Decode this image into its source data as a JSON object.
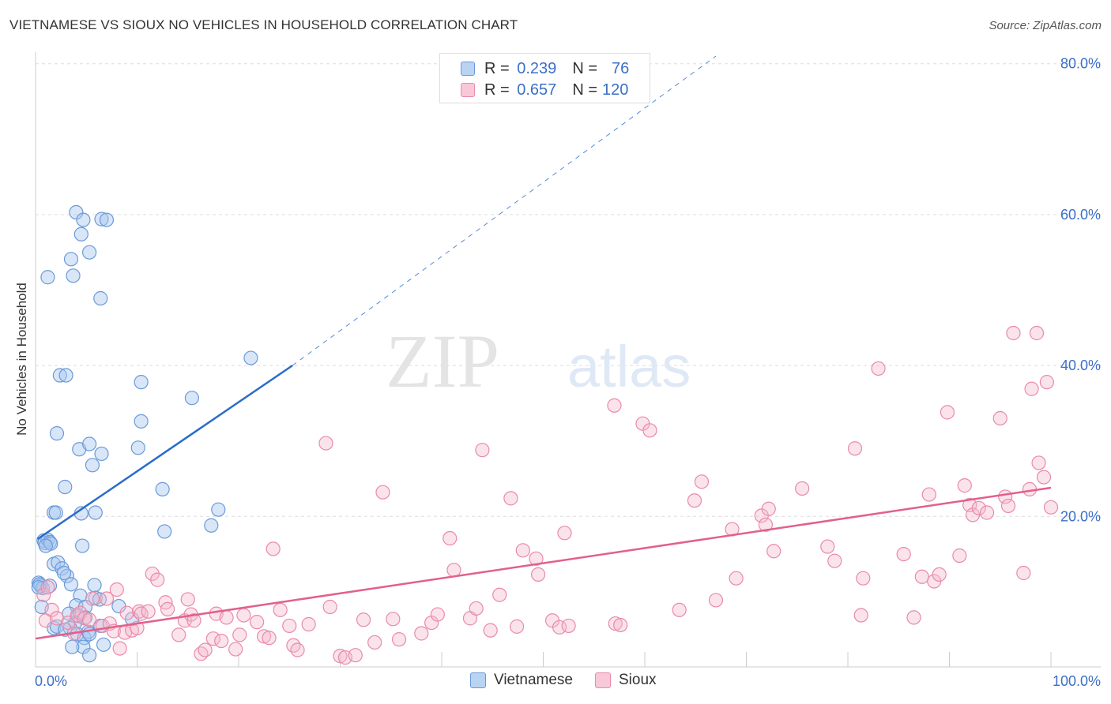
{
  "title": "VIETNAMESE VS SIOUX NO VEHICLES IN HOUSEHOLD CORRELATION CHART",
  "source": "Source: ZipAtlas.com",
  "watermark": {
    "zip": "ZIP",
    "atlas": "atlas"
  },
  "legend": {
    "rows": [
      {
        "r_label": "R =",
        "r_value": "0.239",
        "n_label": "N =",
        "n_value": "76"
      },
      {
        "r_label": "R =",
        "r_value": "0.657",
        "n_label": "N =",
        "n_value": "120"
      }
    ]
  },
  "colors": {
    "vietnamese_fill": "#a8c8f0",
    "vietnamese_stroke": "#6a9ad8",
    "vietnamese_line": "#2a6ccc",
    "sioux_fill": "#f5b8cc",
    "sioux_stroke": "#e98aa8",
    "sioux_line": "#e2608c",
    "axis_text": "#3b6fc9"
  },
  "chart_data": {
    "type": "scatter",
    "title": "VIETNAMESE VS SIOUX NO VEHICLES IN HOUSEHOLD CORRELATION CHART",
    "xlabel": "",
    "ylabel": "No Vehicles in Household",
    "xlim": [
      0,
      100
    ],
    "ylim": [
      0,
      80
    ],
    "x_tick_labels": [
      "0.0%",
      "100.0%"
    ],
    "y_ticks": [
      20,
      40,
      60,
      80
    ],
    "y_tick_labels": [
      "20.0%",
      "40.0%",
      "60.0%",
      "80.0%"
    ],
    "grid": true,
    "legend_position": "bottom-center",
    "series": [
      {
        "name": "Vietnamese",
        "R": 0.239,
        "N": 76,
        "trend": {
          "x0": 0.2,
          "y0": 17.0,
          "x1": 25.3,
          "y1": 40.0,
          "dash_x1": 67.0,
          "dash_y1": 81.0
        },
        "points": [
          [
            0.3,
            11.2
          ],
          [
            0.5,
            10.8
          ],
          [
            0.4,
            11.0
          ],
          [
            0.7,
            10.5
          ],
          [
            0.3,
            10.6
          ],
          [
            0.6,
            8.0
          ],
          [
            1.4,
            10.8
          ],
          [
            0.8,
            16.8
          ],
          [
            0.9,
            16.5
          ],
          [
            1.2,
            16.9
          ],
          [
            1.4,
            16.6
          ],
          [
            1.5,
            16.4
          ],
          [
            1.0,
            16.1
          ],
          [
            1.8,
            20.5
          ],
          [
            2.0,
            20.5
          ],
          [
            1.8,
            13.7
          ],
          [
            2.2,
            13.9
          ],
          [
            2.6,
            13.1
          ],
          [
            3.1,
            12.1
          ],
          [
            2.8,
            12.5
          ],
          [
            3.5,
            11.0
          ],
          [
            4.4,
            9.5
          ],
          [
            4.0,
            8.2
          ],
          [
            4.9,
            8.0
          ],
          [
            4.2,
            6.8
          ],
          [
            4.9,
            6.6
          ],
          [
            3.9,
            5.9
          ],
          [
            3.4,
            5.2
          ],
          [
            1.8,
            5.2
          ],
          [
            2.1,
            5.4
          ],
          [
            2.9,
            5.0
          ],
          [
            4.1,
            4.4
          ],
          [
            4.8,
            3.9
          ],
          [
            5.2,
            4.7
          ],
          [
            5.3,
            4.4
          ],
          [
            6.4,
            5.5
          ],
          [
            4.7,
            2.7
          ],
          [
            3.6,
            2.7
          ],
          [
            6.7,
            3.0
          ],
          [
            5.3,
            1.6
          ],
          [
            3.3,
            7.1
          ],
          [
            5.8,
            10.9
          ],
          [
            5.9,
            9.2
          ],
          [
            6.3,
            9.0
          ],
          [
            4.6,
            16.1
          ],
          [
            2.1,
            31.0
          ],
          [
            2.4,
            38.7
          ],
          [
            3.0,
            38.7
          ],
          [
            2.9,
            23.9
          ],
          [
            4.3,
            28.9
          ],
          [
            5.3,
            29.6
          ],
          [
            5.6,
            26.8
          ],
          [
            6.5,
            28.3
          ],
          [
            5.9,
            20.5
          ],
          [
            4.5,
            20.4
          ],
          [
            8.2,
            8.1
          ],
          [
            9.5,
            6.4
          ],
          [
            10.1,
            29.1
          ],
          [
            10.4,
            32.6
          ],
          [
            10.4,
            37.8
          ],
          [
            12.5,
            23.6
          ],
          [
            12.7,
            18.0
          ],
          [
            15.4,
            35.7
          ],
          [
            17.3,
            18.8
          ],
          [
            18.0,
            20.9
          ],
          [
            21.2,
            41.0
          ],
          [
            1.2,
            51.7
          ],
          [
            3.5,
            54.1
          ],
          [
            3.7,
            51.9
          ],
          [
            4.0,
            60.3
          ],
          [
            4.5,
            57.4
          ],
          [
            5.3,
            55.0
          ],
          [
            6.4,
            48.9
          ],
          [
            6.5,
            59.4
          ],
          [
            7.0,
            59.3
          ],
          [
            4.7,
            59.3
          ]
        ]
      },
      {
        "name": "Sioux",
        "R": 0.657,
        "N": 120,
        "trend": {
          "x0": 0.0,
          "y0": 3.8,
          "x1": 100.0,
          "y1": 23.8
        },
        "points": [
          [
            0.8,
            9.6
          ],
          [
            1.0,
            6.2
          ],
          [
            1.2,
            10.6
          ],
          [
            1.6,
            7.6
          ],
          [
            2.1,
            6.5
          ],
          [
            3.2,
            5.9
          ],
          [
            3.8,
            4.5
          ],
          [
            4.1,
            6.9
          ],
          [
            4.4,
            7.2
          ],
          [
            4.8,
            6.5
          ],
          [
            5.3,
            6.3
          ],
          [
            5.6,
            9.1
          ],
          [
            6.6,
            5.5
          ],
          [
            7.0,
            9.1
          ],
          [
            7.3,
            5.8
          ],
          [
            7.7,
            4.8
          ],
          [
            8.0,
            10.3
          ],
          [
            8.3,
            2.5
          ],
          [
            8.8,
            4.6
          ],
          [
            9.0,
            7.2
          ],
          [
            9.5,
            4.9
          ],
          [
            10.0,
            5.2
          ],
          [
            10.2,
            7.4
          ],
          [
            10.4,
            7.1
          ],
          [
            11.1,
            7.4
          ],
          [
            11.5,
            12.4
          ],
          [
            12.0,
            11.6
          ],
          [
            12.8,
            8.6
          ],
          [
            13.0,
            7.7
          ],
          [
            14.1,
            4.3
          ],
          [
            14.7,
            6.2
          ],
          [
            15.0,
            9.0
          ],
          [
            15.3,
            7.0
          ],
          [
            15.6,
            6.2
          ],
          [
            16.3,
            1.8
          ],
          [
            16.7,
            2.3
          ],
          [
            17.5,
            3.8
          ],
          [
            17.8,
            7.1
          ],
          [
            18.3,
            3.5
          ],
          [
            18.8,
            6.6
          ],
          [
            19.7,
            2.4
          ],
          [
            20.1,
            4.3
          ],
          [
            20.5,
            6.9
          ],
          [
            21.8,
            6.0
          ],
          [
            22.5,
            4.1
          ],
          [
            23.0,
            3.9
          ],
          [
            23.4,
            15.7
          ],
          [
            24.1,
            7.6
          ],
          [
            25.0,
            5.5
          ],
          [
            25.4,
            2.9
          ],
          [
            25.8,
            2.3
          ],
          [
            26.9,
            5.7
          ],
          [
            28.6,
            29.7
          ],
          [
            29.0,
            8.0
          ],
          [
            30.0,
            1.5
          ],
          [
            30.5,
            1.3
          ],
          [
            31.5,
            1.6
          ],
          [
            32.3,
            6.3
          ],
          [
            33.4,
            3.3
          ],
          [
            34.2,
            23.2
          ],
          [
            35.2,
            6.4
          ],
          [
            35.8,
            3.7
          ],
          [
            38.0,
            4.5
          ],
          [
            39.0,
            5.9
          ],
          [
            39.6,
            7.0
          ],
          [
            40.8,
            17.1
          ],
          [
            41.2,
            12.9
          ],
          [
            42.8,
            6.5
          ],
          [
            43.4,
            7.8
          ],
          [
            44.0,
            28.8
          ],
          [
            44.8,
            4.9
          ],
          [
            45.7,
            9.6
          ],
          [
            46.8,
            22.4
          ],
          [
            47.4,
            5.4
          ],
          [
            48.0,
            15.5
          ],
          [
            49.3,
            14.4
          ],
          [
            49.5,
            12.3
          ],
          [
            50.9,
            6.2
          ],
          [
            51.6,
            5.3
          ],
          [
            52.1,
            17.8
          ],
          [
            52.5,
            5.5
          ],
          [
            57.0,
            34.7
          ],
          [
            57.1,
            5.8
          ],
          [
            57.6,
            5.6
          ],
          [
            59.8,
            32.3
          ],
          [
            60.5,
            31.4
          ],
          [
            63.4,
            7.6
          ],
          [
            64.9,
            22.1
          ],
          [
            65.6,
            24.6
          ],
          [
            67.0,
            8.9
          ],
          [
            68.6,
            18.3
          ],
          [
            69.0,
            11.8
          ],
          [
            71.5,
            20.1
          ],
          [
            71.9,
            18.9
          ],
          [
            72.2,
            21.0
          ],
          [
            72.7,
            15.4
          ],
          [
            75.5,
            23.7
          ],
          [
            78.0,
            16.0
          ],
          [
            78.7,
            14.1
          ],
          [
            80.7,
            29.0
          ],
          [
            81.3,
            6.9
          ],
          [
            81.5,
            11.8
          ],
          [
            83.0,
            39.6
          ],
          [
            85.5,
            15.0
          ],
          [
            86.5,
            6.6
          ],
          [
            87.3,
            12.0
          ],
          [
            88.0,
            22.9
          ],
          [
            88.5,
            11.4
          ],
          [
            89.0,
            12.3
          ],
          [
            89.8,
            33.8
          ],
          [
            91.0,
            14.8
          ],
          [
            91.5,
            24.1
          ],
          [
            92.0,
            21.5
          ],
          [
            92.3,
            20.2
          ],
          [
            92.9,
            21.1
          ],
          [
            93.7,
            20.5
          ],
          [
            95.0,
            33.0
          ],
          [
            95.5,
            22.6
          ],
          [
            95.8,
            21.4
          ],
          [
            97.3,
            12.5
          ],
          [
            97.9,
            23.6
          ],
          [
            98.1,
            36.9
          ],
          [
            98.8,
            27.1
          ],
          [
            99.3,
            25.2
          ],
          [
            100.0,
            21.2
          ],
          [
            98.6,
            44.3
          ],
          [
            99.6,
            37.8
          ],
          [
            96.3,
            44.3
          ]
        ]
      }
    ]
  }
}
